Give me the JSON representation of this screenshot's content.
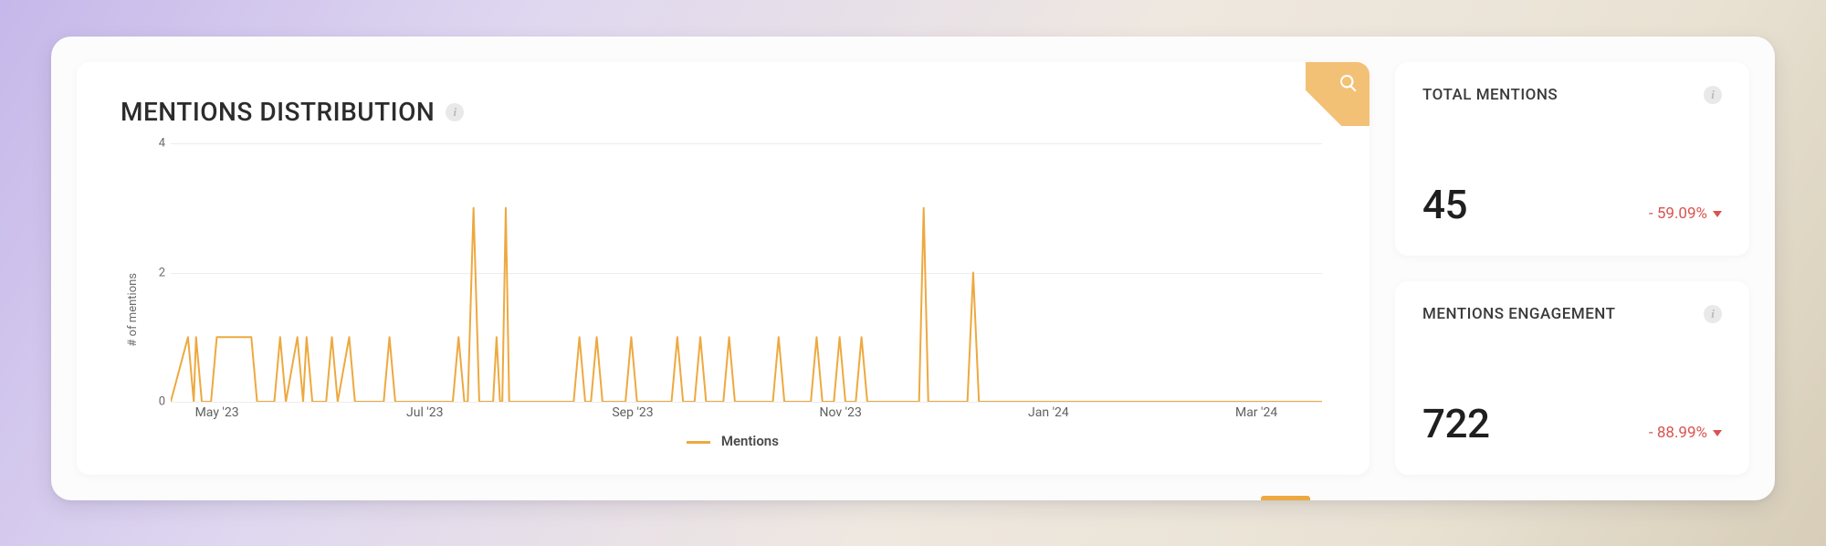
{
  "chart": {
    "title": "MENTIONS DISTRIBUTION",
    "type": "line",
    "y_axis_label": "# of mentions",
    "y_ticks": [
      0,
      2,
      4
    ],
    "ylim": [
      0,
      4
    ],
    "x_labels": [
      "May '23",
      "Jul '23",
      "Sep '23",
      "Nov '23",
      "Jan '24",
      "Mar '24"
    ],
    "x_label_positions_pct": [
      4,
      22,
      40,
      58,
      76,
      94
    ],
    "series": {
      "name": "Mentions",
      "color": "#eda93f",
      "line_width": 2,
      "points": [
        [
          0.0,
          0
        ],
        [
          0.015,
          1
        ],
        [
          0.02,
          0
        ],
        [
          0.022,
          1
        ],
        [
          0.027,
          0
        ],
        [
          0.035,
          0
        ],
        [
          0.04,
          1
        ],
        [
          0.07,
          1
        ],
        [
          0.075,
          0
        ],
        [
          0.09,
          0
        ],
        [
          0.095,
          1
        ],
        [
          0.1,
          0
        ],
        [
          0.11,
          1
        ],
        [
          0.115,
          0
        ],
        [
          0.118,
          1
        ],
        [
          0.123,
          0
        ],
        [
          0.135,
          0
        ],
        [
          0.14,
          1
        ],
        [
          0.145,
          0
        ],
        [
          0.155,
          1
        ],
        [
          0.16,
          0
        ],
        [
          0.185,
          0
        ],
        [
          0.19,
          1
        ],
        [
          0.195,
          0
        ],
        [
          0.245,
          0
        ],
        [
          0.25,
          1
        ],
        [
          0.255,
          0
        ],
        [
          0.258,
          0
        ],
        [
          0.263,
          3
        ],
        [
          0.268,
          0
        ],
        [
          0.28,
          0
        ],
        [
          0.283,
          1
        ],
        [
          0.286,
          0
        ],
        [
          0.288,
          0
        ],
        [
          0.291,
          3
        ],
        [
          0.294,
          0
        ],
        [
          0.35,
          0
        ],
        [
          0.355,
          1
        ],
        [
          0.36,
          0
        ],
        [
          0.365,
          0
        ],
        [
          0.37,
          1
        ],
        [
          0.375,
          0
        ],
        [
          0.395,
          0
        ],
        [
          0.4,
          1
        ],
        [
          0.405,
          0
        ],
        [
          0.435,
          0
        ],
        [
          0.44,
          1
        ],
        [
          0.445,
          0
        ],
        [
          0.455,
          0
        ],
        [
          0.46,
          1
        ],
        [
          0.465,
          0
        ],
        [
          0.48,
          0
        ],
        [
          0.485,
          1
        ],
        [
          0.49,
          0
        ],
        [
          0.523,
          0
        ],
        [
          0.528,
          1
        ],
        [
          0.533,
          0
        ],
        [
          0.556,
          0
        ],
        [
          0.561,
          1
        ],
        [
          0.566,
          0
        ],
        [
          0.576,
          0
        ],
        [
          0.581,
          1
        ],
        [
          0.586,
          0
        ],
        [
          0.595,
          0
        ],
        [
          0.6,
          1
        ],
        [
          0.605,
          0
        ],
        [
          0.65,
          0
        ],
        [
          0.654,
          3
        ],
        [
          0.658,
          0
        ],
        [
          0.692,
          0
        ],
        [
          0.697,
          2
        ],
        [
          0.702,
          0
        ],
        [
          1.0,
          0
        ]
      ]
    },
    "grid_color": "#ececec",
    "background_color": "#ffffff",
    "legend_label": "Mentions",
    "corner_icon": "search-icon",
    "corner_color": "#f3c176"
  },
  "stats": [
    {
      "title": "TOTAL MENTIONS",
      "value": "45",
      "delta_text": "- 59.09%",
      "delta_direction": "down",
      "delta_color": "#d9534f"
    },
    {
      "title": "MENTIONS ENGAGEMENT",
      "value": "722",
      "delta_text": "- 88.99%",
      "delta_direction": "down",
      "delta_color": "#d9534f"
    }
  ],
  "accent": {
    "color": "#eda93f",
    "left_pct": 70.2
  },
  "colors": {
    "card_bg": "#ffffff",
    "text_primary": "#2c2c2c",
    "text_muted": "#6a6a6a"
  }
}
